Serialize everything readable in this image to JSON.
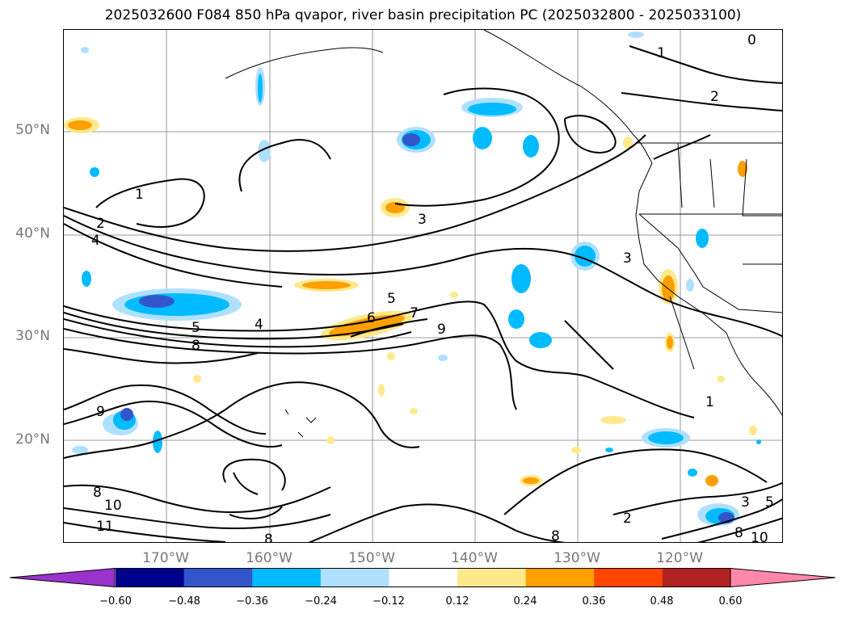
{
  "title": "2025032600 F084 850 hPa qvapor, river basin precipitation PC (2025032800 - 2025033100)",
  "latitude_labels": [
    "50°N",
    "40°N",
    "30°N",
    "20°N"
  ],
  "longitude_labels": [
    "170°W",
    "160°W",
    "150°W",
    "140°W",
    "130°W",
    "120°W"
  ],
  "colorbar": {
    "ticks": [
      "−0.60",
      "−0.48",
      "−0.36",
      "−0.24",
      "−0.12",
      "0.12",
      "0.24",
      "0.36",
      "0.48",
      "0.60"
    ],
    "colors": [
      "#9933cc",
      "#00008b",
      "#3355cc",
      "#00bbff",
      "#b0e0ff",
      "#ffffff",
      "#ffe98c",
      "#ff9f00",
      "#ff4500",
      "#b22222",
      "#ff88aa"
    ]
  },
  "contour_labels": [
    "1",
    "2",
    "3",
    "4",
    "5",
    "6",
    "7",
    "8",
    "9",
    "10",
    "11",
    "0"
  ]
}
